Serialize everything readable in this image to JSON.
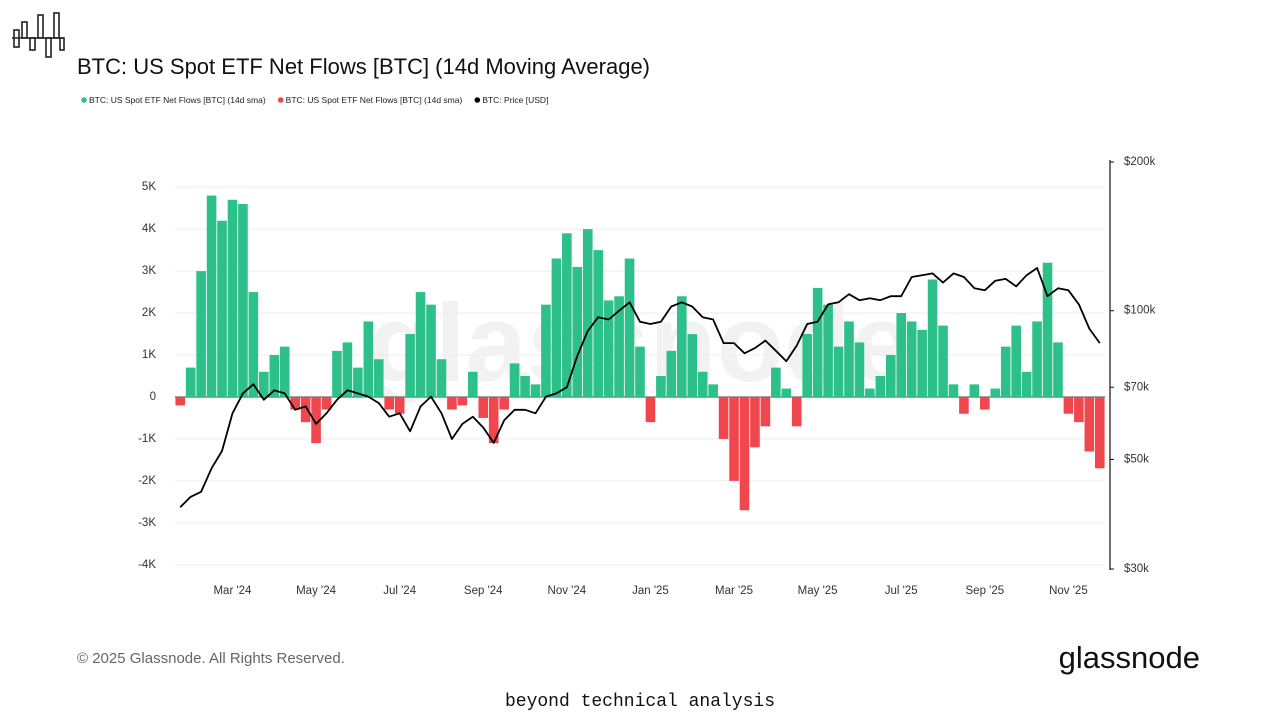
{
  "chart_data": {
    "type": "bar",
    "title": "BTC: US Spot ETF Net Flows [BTC] (14d Moving Average)",
    "watermark": "glassnode",
    "copyright": "© 2025 Glassnode. All Rights Reserved.",
    "brand": "glassnode",
    "tagline": "beyond technical analysis",
    "categories": [
      null,
      null,
      null,
      null,
      null,
      "Mar '24",
      null,
      null,
      null,
      null,
      null,
      null,
      null,
      "May '24",
      null,
      null,
      null,
      null,
      null,
      null,
      null,
      "Jul '24",
      null,
      null,
      null,
      null,
      null,
      null,
      null,
      "Sep '24",
      null,
      null,
      null,
      null,
      null,
      null,
      null,
      "Nov '24",
      null,
      null,
      null,
      null,
      null,
      null,
      null,
      "Jan '25",
      null,
      null,
      null,
      null,
      null,
      null,
      null,
      "Mar '25",
      null,
      null,
      null,
      null,
      null,
      null,
      null,
      "May '25",
      null,
      null,
      null,
      null,
      null,
      null,
      null,
      "Jul '25",
      null,
      null,
      null,
      null,
      null,
      null,
      null,
      "Sep '25",
      null,
      null,
      null,
      null,
      null,
      null,
      null,
      "Nov '25",
      null,
      null,
      null
    ],
    "series": [
      {
        "name": "BTC: US Spot ETF Net Flows [BTC] (14d sma)",
        "color": "#2ec08b",
        "values": [
          null,
          700,
          3000,
          4800,
          4200,
          4700,
          4600,
          2500,
          600,
          1000,
          1200,
          null,
          null,
          null,
          null,
          1100,
          1300,
          700,
          1800,
          900,
          null,
          null,
          1500,
          2500,
          2200,
          900,
          null,
          null,
          600,
          null,
          null,
          null,
          800,
          500,
          300,
          2200,
          3300,
          3900,
          3100,
          4000,
          3500,
          2300,
          2400,
          3300,
          1200,
          null,
          500,
          1100,
          2400,
          1500,
          600,
          300,
          null,
          null,
          null,
          null,
          null,
          700,
          200,
          null,
          1500,
          2600,
          2200,
          1200,
          1800,
          1300,
          200,
          500,
          1000,
          2000,
          1800,
          1600,
          2800,
          1700,
          300,
          null,
          300,
          null,
          200,
          1200,
          1700,
          600,
          1800,
          3200,
          1300,
          null,
          null,
          null,
          null
        ]
      },
      {
        "name": "BTC: US Spot ETF Net Flows [BTC] (14d sma)",
        "color": "#f0474e",
        "values": [
          -200,
          null,
          null,
          null,
          null,
          null,
          null,
          null,
          null,
          null,
          null,
          -300,
          -600,
          -1100,
          -300,
          null,
          null,
          null,
          null,
          null,
          -300,
          -400,
          null,
          null,
          null,
          null,
          -300,
          -200,
          null,
          -500,
          -1100,
          -300,
          null,
          null,
          null,
          null,
          null,
          null,
          null,
          null,
          null,
          null,
          null,
          null,
          null,
          -600,
          null,
          null,
          null,
          null,
          null,
          null,
          -1000,
          -2000,
          -2700,
          -1200,
          -700,
          null,
          null,
          -700,
          null,
          null,
          null,
          null,
          null,
          null,
          null,
          null,
          null,
          null,
          null,
          null,
          null,
          null,
          null,
          -400,
          null,
          -300,
          null,
          null,
          null,
          null,
          null,
          null,
          null,
          -400,
          -600,
          -1300,
          -1700
        ]
      },
      {
        "name": "BTC: Price [USD]",
        "color": "#000000",
        "type": "line",
        "axis": "y2",
        "values": [
          40000,
          42000,
          43000,
          48000,
          52000,
          62000,
          68000,
          71000,
          66000,
          69000,
          68000,
          63000,
          64000,
          59000,
          62000,
          66000,
          69000,
          68000,
          67000,
          65000,
          61000,
          62000,
          57000,
          64000,
          67000,
          62000,
          55000,
          59000,
          61000,
          58000,
          54000,
          60000,
          63000,
          63000,
          62000,
          67000,
          68000,
          70000,
          81000,
          91000,
          97000,
          96000,
          100000,
          104000,
          95000,
          94000,
          95000,
          102000,
          104000,
          102000,
          97000,
          96000,
          86000,
          86000,
          82000,
          84000,
          87000,
          83000,
          79000,
          85000,
          94000,
          95000,
          103000,
          104000,
          108000,
          105000,
          106000,
          105000,
          107000,
          107000,
          117000,
          118000,
          119000,
          114000,
          119000,
          117000,
          111000,
          110000,
          115000,
          116000,
          112000,
          118000,
          122000,
          107000,
          111000,
          110000,
          103000,
          92000,
          86000
        ]
      }
    ],
    "ylim": [
      -4100,
      5600
    ],
    "yticks": [
      {
        "value": -4000,
        "label": "-4K"
      },
      {
        "value": -3000,
        "label": "-3K"
      },
      {
        "value": -2000,
        "label": "-2K"
      },
      {
        "value": -1000,
        "label": "-1K"
      },
      0,
      {
        "value": 1000,
        "label": "1K"
      },
      {
        "value": 2000,
        "label": "2K"
      },
      {
        "value": 3000,
        "label": "3K"
      },
      {
        "value": 4000,
        "label": "4K"
      },
      {
        "value": 5000,
        "label": "5K"
      }
    ],
    "y2lim": [
      30000,
      200000
    ],
    "y2scale": "log",
    "y2ticks": [
      {
        "value": 30000,
        "label": "$30k"
      },
      {
        "value": 50000,
        "label": "$50k"
      },
      {
        "value": 70000,
        "label": "$70k"
      },
      {
        "value": 100000,
        "label": "$100k"
      },
      {
        "value": 200000,
        "label": "$200k"
      }
    ],
    "grid": true
  }
}
